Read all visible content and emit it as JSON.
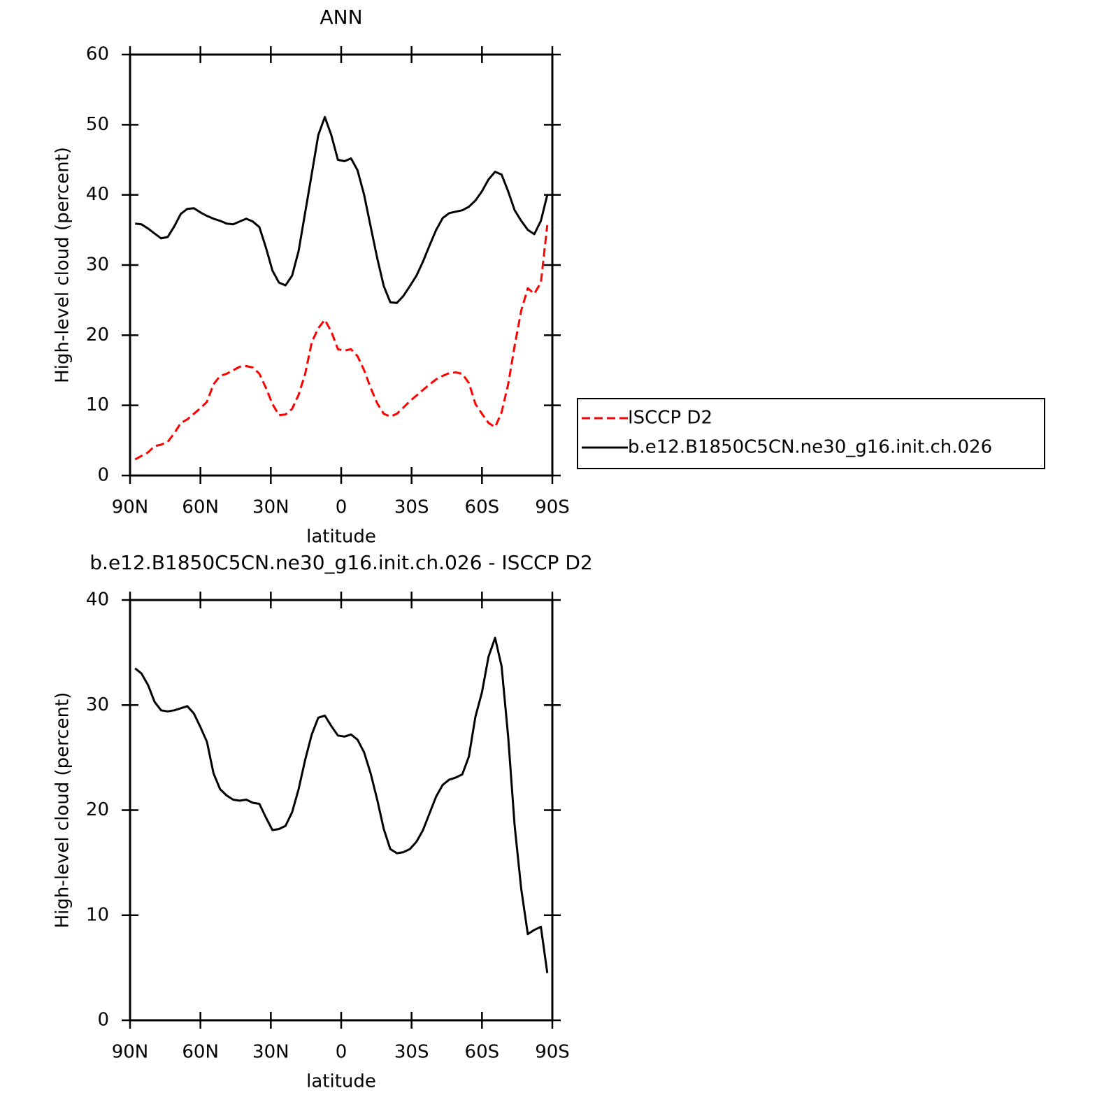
{
  "chart_data": [
    {
      "type": "line",
      "title": "ANN",
      "xlabel": "latitude",
      "ylabel": "High-level cloud (percent)",
      "x": [
        87.86,
        85.1,
        82.31,
        79.53,
        76.74,
        73.95,
        71.16,
        68.37,
        65.58,
        62.79,
        60.0,
        57.21,
        54.42,
        51.63,
        48.84,
        46.05,
        43.26,
        40.47,
        37.67,
        34.88,
        32.09,
        29.3,
        26.51,
        23.72,
        20.93,
        18.14,
        15.35,
        12.56,
        9.77,
        6.98,
        4.19,
        1.4,
        -1.4,
        -4.19,
        -6.98,
        -9.77,
        -12.56,
        -15.35,
        -18.14,
        -20.93,
        -23.72,
        -26.51,
        -29.3,
        -32.09,
        -34.88,
        -37.67,
        -40.47,
        -43.26,
        -46.05,
        -48.84,
        -51.63,
        -54.42,
        -57.21,
        -60.0,
        -62.79,
        -65.58,
        -68.37,
        -71.16,
        -73.95,
        -76.74,
        -79.53,
        -82.31,
        -85.1,
        -87.86
      ],
      "series": [
        {
          "name": "ISCCP D2",
          "color": "#ff0000",
          "linestyle": "dashed",
          "values": [
            2.3,
            2.8,
            3.3,
            4.2,
            4.4,
            4.8,
            6.0,
            7.5,
            8.0,
            8.8,
            9.6,
            10.5,
            13.0,
            14.2,
            14.5,
            15.0,
            15.5,
            15.6,
            15.4,
            14.5,
            12.5,
            10.2,
            8.6,
            8.7,
            9.5,
            11.5,
            14.5,
            19.0,
            21.0,
            22.2,
            20.5,
            18.0,
            17.8,
            18.0,
            17.0,
            15.0,
            12.5,
            10.3,
            8.8,
            8.4,
            8.8,
            9.7,
            10.6,
            11.4,
            12.2,
            13.0,
            13.7,
            14.2,
            14.6,
            14.7,
            14.5,
            13.2,
            10.2,
            8.8,
            7.5,
            6.9,
            9.0,
            13.0,
            18.5,
            23.5,
            26.7,
            25.9,
            27.5,
            35.7
          ]
        },
        {
          "name": "b.e12.B1850C5CN.ne30_g16.init.ch.026",
          "color": "#000000",
          "linestyle": "solid",
          "values": [
            35.9,
            35.8,
            35.2,
            34.5,
            33.8,
            34.0,
            35.5,
            37.3,
            38.0,
            38.1,
            37.5,
            37.0,
            36.6,
            36.3,
            35.9,
            35.8,
            36.2,
            36.6,
            36.2,
            35.4,
            32.5,
            29.2,
            27.5,
            27.1,
            28.5,
            32.0,
            37.5,
            43.0,
            48.5,
            51.1,
            48.5,
            45.0,
            44.8,
            45.2,
            43.5,
            40.0,
            35.5,
            31.0,
            27.0,
            24.7,
            24.6,
            25.6,
            27.0,
            28.5,
            30.5,
            32.8,
            35.0,
            36.7,
            37.4,
            37.6,
            37.8,
            38.3,
            39.2,
            40.5,
            42.2,
            43.3,
            42.9,
            40.5,
            37.8,
            36.3,
            35.0,
            34.4,
            36.3,
            40.0
          ]
        }
      ],
      "xlim": [
        90,
        -90
      ],
      "xticks": [
        {
          "value": 90,
          "label": "90N"
        },
        {
          "value": 60,
          "label": "60N"
        },
        {
          "value": 30,
          "label": "30N"
        },
        0,
        {
          "value": -30,
          "label": "30S"
        },
        {
          "value": -60,
          "label": "60S"
        },
        {
          "value": -90,
          "label": "90S"
        }
      ],
      "ylim": [
        0,
        60
      ],
      "yticks": [
        0,
        10,
        20,
        30,
        40,
        50,
        60
      ],
      "legend": "right"
    },
    {
      "type": "line",
      "title": "b.e12.B1850C5CN.ne30_g16.init.ch.026 - ISCCP D2",
      "xlabel": "latitude",
      "ylabel": "High-level cloud (percent)",
      "x": [
        87.86,
        85.1,
        82.31,
        79.53,
        76.74,
        73.95,
        71.16,
        68.37,
        65.58,
        62.79,
        60.0,
        57.21,
        54.42,
        51.63,
        48.84,
        46.05,
        43.26,
        40.47,
        37.67,
        34.88,
        32.09,
        29.3,
        26.51,
        23.72,
        20.93,
        18.14,
        15.35,
        12.56,
        9.77,
        6.98,
        4.19,
        1.4,
        -1.4,
        -4.19,
        -6.98,
        -9.77,
        -12.56,
        -15.35,
        -18.14,
        -20.93,
        -23.72,
        -26.51,
        -29.3,
        -32.09,
        -34.88,
        -37.67,
        -40.47,
        -43.26,
        -46.05,
        -48.84,
        -51.63,
        -54.42,
        -57.21,
        -60.0,
        -62.79,
        -65.58,
        -68.37,
        -71.16,
        -73.95,
        -76.74,
        -79.53,
        -82.31,
        -85.1,
        -87.86
      ],
      "series": [
        {
          "color": "#000000",
          "linestyle": "solid",
          "values": [
            33.5,
            33.0,
            31.9,
            30.3,
            29.5,
            29.4,
            29.5,
            29.7,
            29.9,
            29.2,
            27.9,
            26.5,
            23.5,
            22.0,
            21.4,
            21.0,
            20.9,
            21.0,
            20.7,
            20.6,
            19.3,
            18.1,
            18.2,
            18.5,
            19.8,
            22.0,
            24.8,
            27.2,
            28.8,
            29.0,
            28.0,
            27.1,
            27.0,
            27.2,
            26.7,
            25.5,
            23.5,
            21.0,
            18.2,
            16.3,
            15.9,
            16.0,
            16.3,
            17.0,
            18.1,
            19.7,
            21.3,
            22.4,
            22.9,
            23.1,
            23.4,
            25.1,
            28.9,
            31.2,
            34.6,
            36.4,
            33.7,
            27.0,
            18.5,
            12.5,
            8.2,
            8.6,
            8.9,
            4.5
          ]
        }
      ],
      "xlim": [
        90,
        -90
      ],
      "xticks": [
        {
          "value": 90,
          "label": "90N"
        },
        {
          "value": 60,
          "label": "60N"
        },
        {
          "value": 30,
          "label": "30N"
        },
        0,
        {
          "value": -30,
          "label": "30S"
        },
        {
          "value": -60,
          "label": "60S"
        },
        {
          "value": -90,
          "label": "90S"
        }
      ],
      "ylim": [
        0,
        40
      ],
      "yticks": [
        0,
        10,
        20,
        30,
        40
      ]
    }
  ]
}
